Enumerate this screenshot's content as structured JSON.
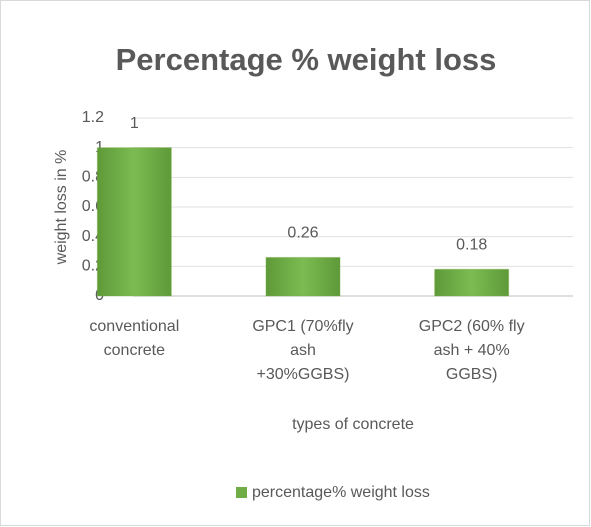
{
  "chart_data": {
    "type": "bar",
    "title": "Percentage % weight loss",
    "x_label": "types of concrete",
    "y_label": "weight loss in %",
    "categories": [
      "conventional concrete",
      "GPC1 (70%fly ash +30%GGBS)",
      "GPC2 (60% fly ash + 40% GGBS)"
    ],
    "series": [
      {
        "name": "percentage% weight loss",
        "color": "#70ad47",
        "values": [
          1,
          0.26,
          0.18
        ]
      }
    ],
    "ylim": [
      0,
      1.2
    ],
    "yticks": [
      0,
      0.2,
      0.4,
      0.6,
      0.8,
      1,
      1.2
    ],
    "grid": true,
    "legend": "bottom"
  }
}
